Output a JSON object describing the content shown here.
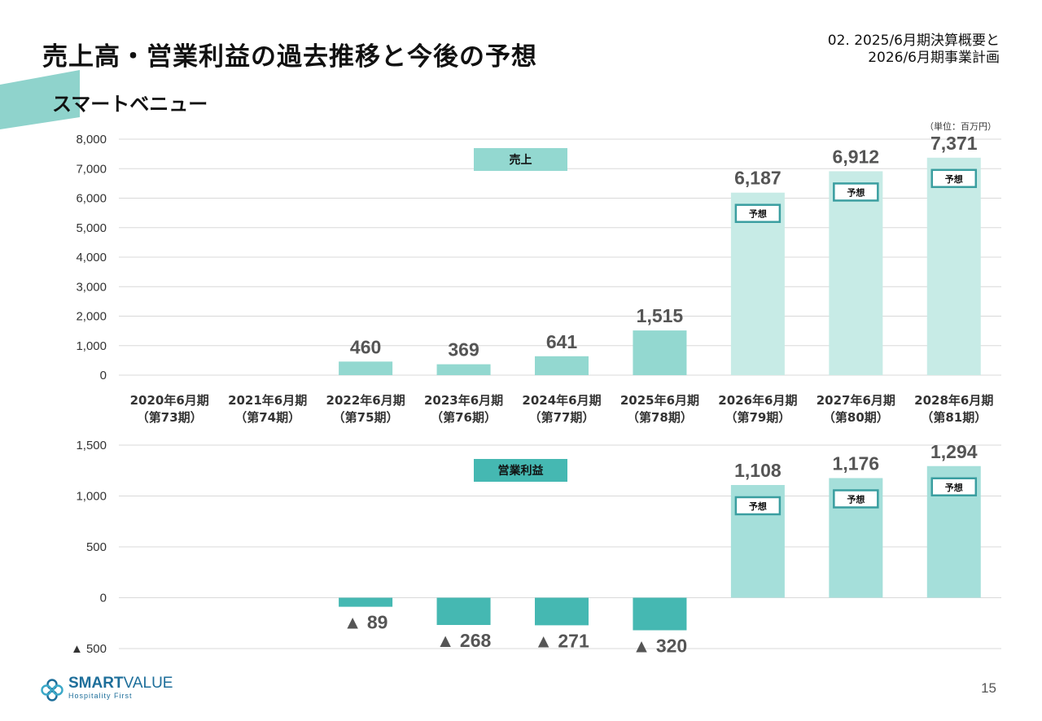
{
  "header": {
    "title": "売上高・営業利益の過去推移と今後の予想",
    "section_line1": "02. 2025/6月期決算概要と",
    "section_line2": "2026/6月期事業計画",
    "subtitle": "スマートベニュー",
    "unit": "（単位：百万円）"
  },
  "colors": {
    "actual_revenue": "#93d8d0",
    "forecast_revenue": "#c7ebe6",
    "actual_profit": "#45b8b2",
    "forecast_profit": "#a5dfda",
    "forecast_badge_border": "#3a9ea0",
    "accent": "#8fd3cc"
  },
  "chart_data": [
    {
      "type": "bar",
      "title": "売上",
      "categories_line1": [
        "2020年6月期",
        "2021年6月期",
        "2022年6月期",
        "2023年6月期",
        "2024年6月期",
        "2025年6月期",
        "2026年6月期",
        "2027年6月期",
        "2028年6月期"
      ],
      "categories_line2": [
        "（第73期）",
        "（第74期）",
        "（第75期）",
        "（第76期）",
        "（第77期）",
        "（第78期）",
        "（第79期）",
        "（第80期）",
        "（第81期）"
      ],
      "values": [
        null,
        null,
        460,
        369,
        641,
        1515,
        6187,
        6912,
        7371
      ],
      "value_labels": [
        "",
        "",
        "460",
        "369",
        "641",
        "1,515",
        "6,187",
        "6,912",
        "7,371"
      ],
      "forecast": [
        false,
        false,
        false,
        false,
        false,
        false,
        true,
        true,
        true
      ],
      "forecast_label": "予想",
      "ylim": [
        0,
        8000
      ],
      "yticks": [
        0,
        1000,
        2000,
        3000,
        4000,
        5000,
        6000,
        7000,
        8000
      ],
      "ytick_labels": [
        "0",
        "1,000",
        "2,000",
        "3,000",
        "4,000",
        "5,000",
        "6,000",
        "7,000",
        "8,000"
      ],
      "grid": true
    },
    {
      "type": "bar",
      "title": "営業利益",
      "values": [
        null,
        null,
        -89,
        -268,
        -271,
        -320,
        1108,
        1176,
        1294
      ],
      "value_labels": [
        "",
        "",
        "▲ 89",
        "▲ 268",
        "▲ 271",
        "▲ 320",
        "1,108",
        "1,176",
        "1,294"
      ],
      "forecast": [
        false,
        false,
        false,
        false,
        false,
        false,
        true,
        true,
        true
      ],
      "forecast_label": "予想",
      "ylim": [
        -500,
        1500
      ],
      "yticks": [
        -500,
        0,
        500,
        1000,
        1500
      ],
      "ytick_labels": [
        "▲ 500",
        "0",
        "500",
        "1,000",
        "1,500"
      ],
      "grid": true
    }
  ],
  "footer": {
    "logo_name_bold": "SMART",
    "logo_name_rest": "VALUE",
    "logo_tagline": "Hospitality First",
    "page_number": "15"
  }
}
